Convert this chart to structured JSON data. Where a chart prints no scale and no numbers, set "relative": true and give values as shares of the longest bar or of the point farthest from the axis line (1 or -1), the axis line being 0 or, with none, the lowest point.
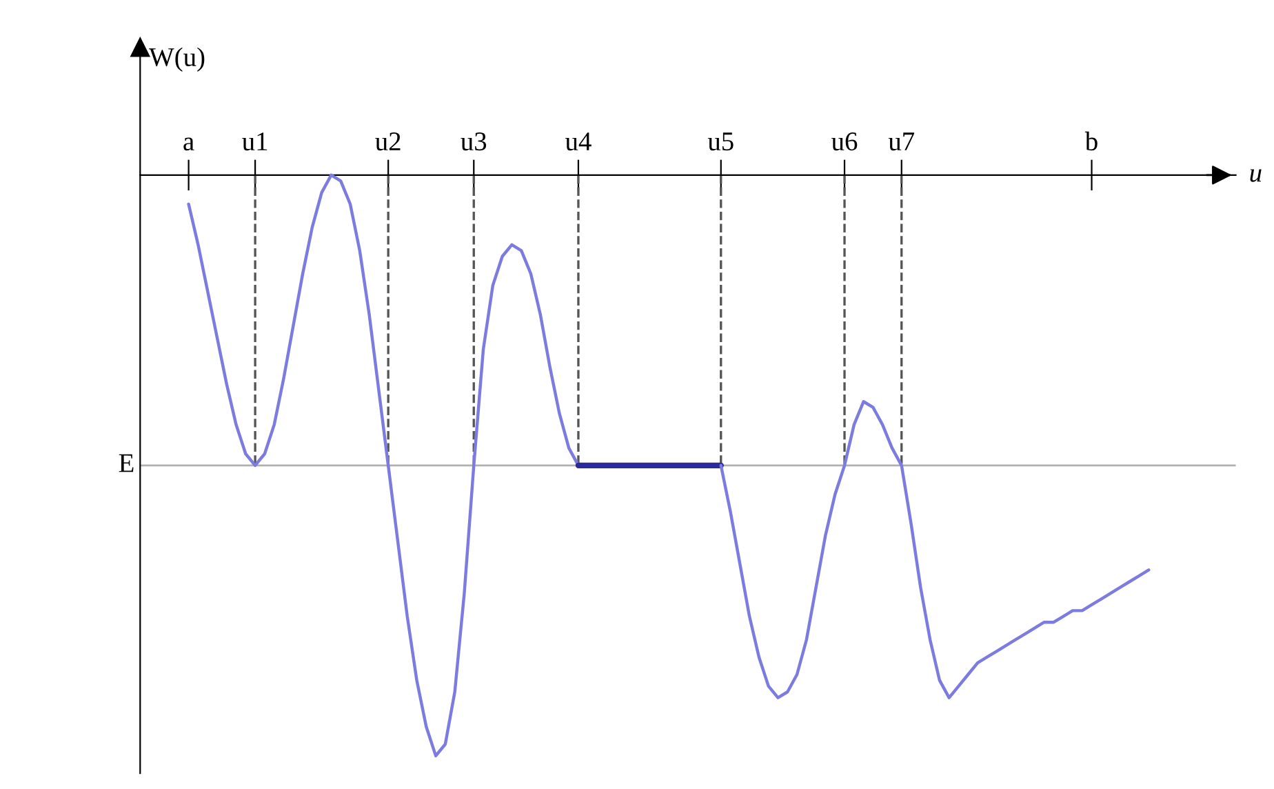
{
  "chart_data": {
    "type": "line",
    "relative": true,
    "ylabel": "W(u)",
    "xlabel": "u",
    "categories": [
      "a",
      null,
      null,
      null,
      null,
      null,
      null,
      "u1",
      null,
      null,
      null,
      null,
      null,
      null,
      null,
      null,
      null,
      null,
      null,
      null,
      null,
      "u2",
      null,
      null,
      null,
      null,
      null,
      null,
      null,
      null,
      "u3",
      null,
      null,
      null,
      null,
      null,
      null,
      null,
      null,
      null,
      null,
      "u4",
      null,
      null,
      null,
      null,
      null,
      null,
      null,
      null,
      null,
      null,
      null,
      null,
      null,
      null,
      "u5",
      null,
      null,
      null,
      null,
      null,
      null,
      null,
      null,
      null,
      null,
      null,
      null,
      "u6",
      null,
      null,
      null,
      null,
      null,
      "u7",
      null,
      null,
      null,
      null,
      null,
      null,
      null,
      null,
      null,
      null,
      null,
      null,
      null,
      null,
      null,
      null,
      null,
      null,
      null,
      "b",
      null,
      null,
      null,
      null,
      null,
      null
    ],
    "series": [
      {
        "color": "#7b7be0",
        "values": [
          -0.05,
          -0.12,
          -0.2,
          -0.28,
          -0.36,
          -0.43,
          -0.48,
          -0.5,
          -0.48,
          -0.43,
          -0.35,
          -0.26,
          -0.17,
          -0.09,
          -0.03,
          0,
          -0.01,
          -0.05,
          -0.13,
          -0.24,
          -0.37,
          -0.5,
          -0.63,
          -0.76,
          -0.87,
          -0.95,
          -1.0,
          -0.98,
          -0.89,
          -0.72,
          -0.5,
          -0.3,
          -0.19,
          -0.14,
          -0.12,
          -0.13,
          -0.17,
          -0.24,
          -0.33,
          -0.41,
          -0.47,
          -0.5,
          null,
          null,
          null,
          null,
          null,
          null,
          null,
          null,
          null,
          null,
          null,
          null,
          null,
          null,
          null,
          null,
          null,
          null,
          null,
          null,
          null,
          null,
          null,
          null,
          null,
          null,
          null,
          null,
          null,
          null,
          null,
          null,
          null,
          null,
          null,
          null,
          null,
          null,
          null,
          null,
          null,
          null,
          null,
          null,
          null,
          null,
          null,
          null,
          null,
          null,
          null,
          null,
          null,
          null,
          null,
          null,
          null,
          null,
          null,
          null
        ]
      },
      {
        "color": "#2a2a9c",
        "values": [
          null,
          null,
          null,
          null,
          null,
          null,
          null,
          null,
          null,
          null,
          null,
          null,
          null,
          null,
          null,
          null,
          null,
          null,
          null,
          null,
          null,
          null,
          null,
          null,
          null,
          null,
          null,
          null,
          null,
          null,
          null,
          null,
          null,
          null,
          null,
          null,
          null,
          null,
          null,
          null,
          null,
          -0.5,
          -0.5,
          -0.5,
          -0.5,
          -0.5,
          -0.5,
          -0.5,
          -0.5,
          -0.5,
          -0.5,
          -0.5,
          -0.5,
          -0.5,
          -0.5,
          -0.5,
          -0.5,
          null,
          null,
          null,
          null,
          null,
          null,
          null,
          null,
          null,
          null,
          null,
          null,
          null,
          null,
          null,
          null,
          null,
          null,
          null,
          null,
          null,
          null,
          null,
          null,
          null,
          null,
          null,
          null,
          null,
          null,
          null,
          null,
          null,
          null,
          null,
          null,
          null,
          null,
          null,
          null,
          null,
          null,
          null,
          null,
          null
        ]
      },
      {
        "color": "#7b7be0",
        "values": [
          null,
          null,
          null,
          null,
          null,
          null,
          null,
          null,
          null,
          null,
          null,
          null,
          null,
          null,
          null,
          null,
          null,
          null,
          null,
          null,
          null,
          null,
          null,
          null,
          null,
          null,
          null,
          null,
          null,
          null,
          null,
          null,
          null,
          null,
          null,
          null,
          null,
          null,
          null,
          null,
          null,
          null,
          null,
          null,
          null,
          null,
          null,
          null,
          null,
          null,
          null,
          null,
          null,
          null,
          null,
          null,
          -0.5,
          -0.58,
          -0.67,
          -0.76,
          -0.83,
          -0.88,
          -0.9,
          -0.89,
          -0.86,
          -0.8,
          -0.71,
          -0.62,
          -0.55,
          -0.5,
          -0.43,
          -0.39,
          -0.4,
          -0.43,
          -0.47,
          -0.5,
          -0.6,
          -0.71,
          -0.8,
          -0.87,
          -0.9,
          -0.88,
          -0.86,
          -0.84,
          -0.83,
          -0.82,
          -0.81,
          -0.8,
          -0.79,
          -0.78,
          -0.77,
          -0.77,
          -0.76,
          -0.75,
          -0.75,
          -0.74,
          -0.73,
          -0.72,
          -0.71,
          -0.7,
          -0.69,
          -0.68
        ]
      }
    ],
    "ref_lines": [
      {
        "axis": "y",
        "value": -0.5,
        "label": "E",
        "color": "#b0b0b0",
        "line_style": "solid"
      },
      {
        "axis": "x",
        "value": "u1",
        "color": "#555555",
        "line_style": "dashed"
      },
      {
        "axis": "x",
        "value": "u2",
        "color": "#555555",
        "line_style": "dashed"
      },
      {
        "axis": "x",
        "value": "u3",
        "color": "#555555",
        "line_style": "dashed"
      },
      {
        "axis": "x",
        "value": "u4",
        "color": "#555555",
        "line_style": "dashed"
      },
      {
        "axis": "x",
        "value": "u5",
        "color": "#555555",
        "line_style": "dashed"
      },
      {
        "axis": "x",
        "value": "u6",
        "color": "#555555",
        "line_style": "dashed"
      },
      {
        "axis": "x",
        "value": "u7",
        "color": "#555555",
        "line_style": "dashed"
      }
    ]
  }
}
